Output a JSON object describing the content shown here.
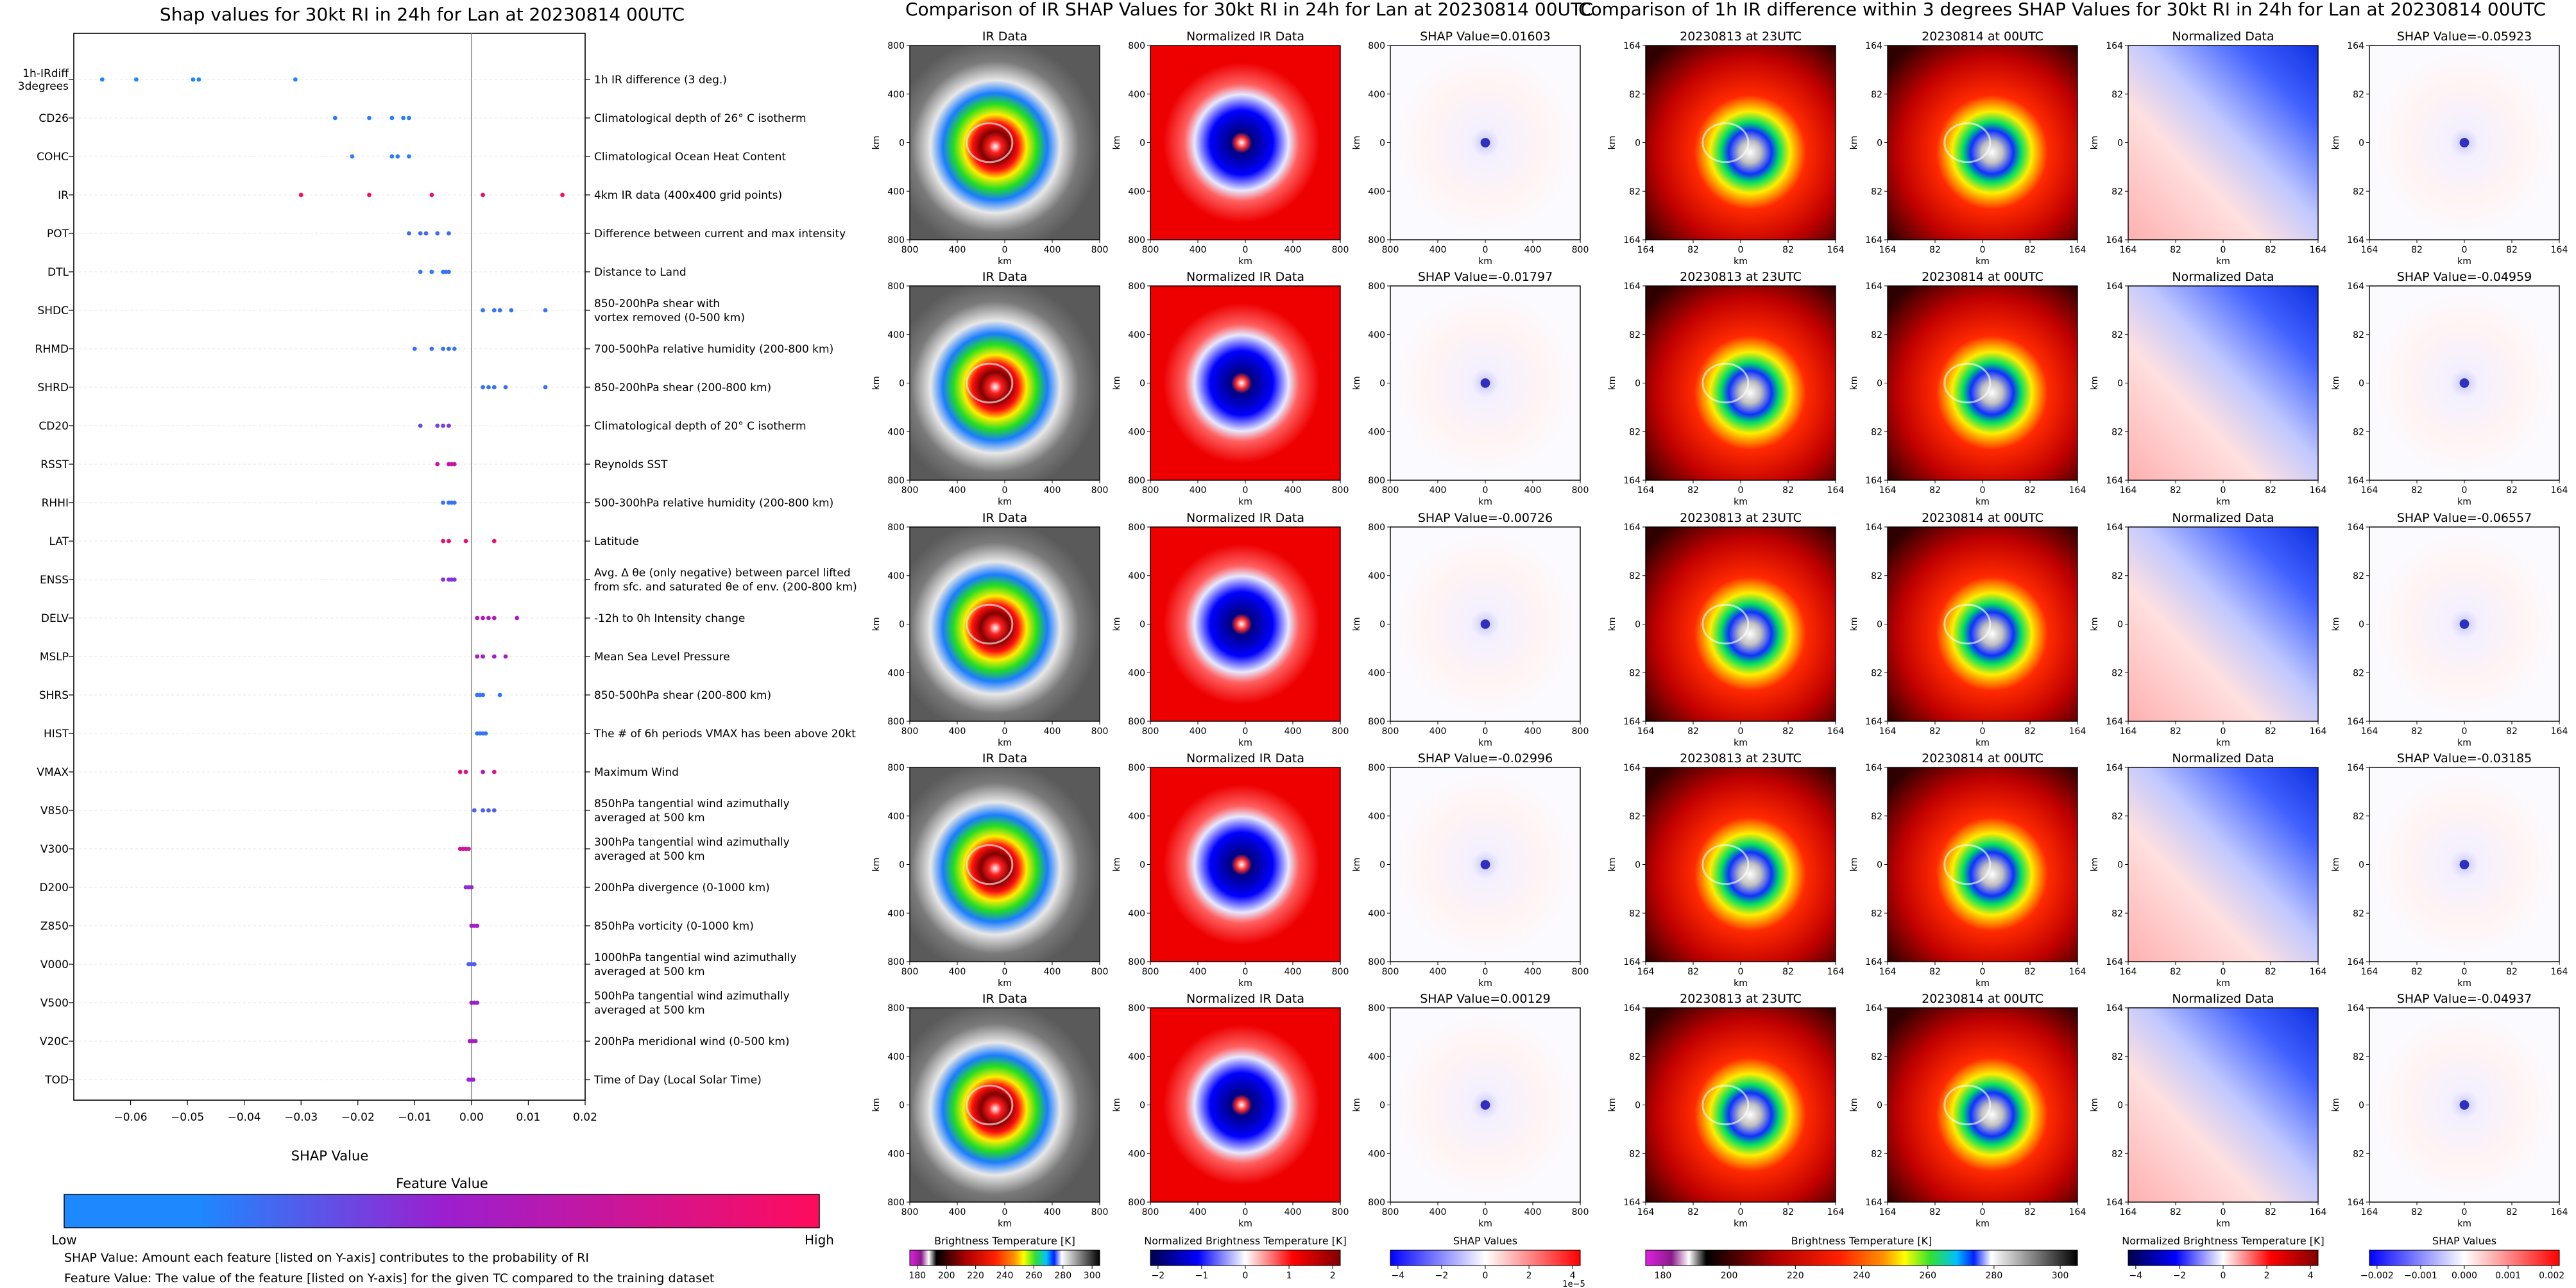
{
  "left_panel": {
    "title": "Shap values for 30kt RI in 24h for Lan at 20230814 00UTC",
    "xlabel": "SHAP Value",
    "colorbar_title": "Feature Value",
    "colorbar_low": "Low",
    "colorbar_high": "High",
    "footnote_1": "SHAP Value: Amount each feature [listed on Y-axis] contributes to the probability of RI",
    "footnote_2": "Feature Value: The value of the feature [listed on Y-axis] for the given TC compared to the training dataset"
  },
  "middle_panel": {
    "title": "Comparison of IR SHAP Values for 30kt RI in 24h for Lan at 20230814 00UTC",
    "column_titles": [
      "IR Data",
      "Normalized IR Data"
    ],
    "shap_titles": [
      "SHAP Value=0.01603",
      "SHAP Value=-0.01797",
      "SHAP Value=-0.00726",
      "SHAP Value=-0.02996",
      "SHAP Value=0.00129"
    ],
    "axis_label": "km",
    "ticks": [
      "800",
      "400",
      "0",
      "400",
      "800"
    ],
    "colorbars": [
      {
        "label": "Brightness Temperature [K]",
        "ticks": [
          "180",
          "200",
          "220",
          "240",
          "260",
          "280",
          "300"
        ],
        "offset": ""
      },
      {
        "label": "Normalized Brightness Temperature [K]",
        "ticks": [
          "−2",
          "−1",
          "0",
          "1",
          "2"
        ],
        "offset": ""
      },
      {
        "label": "SHAP Values",
        "ticks": [
          "−4",
          "−2",
          "0",
          "2",
          "4"
        ],
        "offset": "1e−5"
      }
    ]
  },
  "right_panel": {
    "title": "Comparison of 1h IR difference within 3 degrees SHAP Values for 30kt RI in 24h for Lan at 20230814 00UTC",
    "column_titles": [
      "20230813 at 23UTC",
      "20230814 at 00UTC",
      "Normalized Data"
    ],
    "shap_titles": [
      "SHAP Value=-0.05923",
      "SHAP Value=-0.04959",
      "SHAP Value=-0.06557",
      "SHAP Value=-0.03185",
      "SHAP Value=-0.04937"
    ],
    "axis_label": "km",
    "ticks": [
      "164",
      "82",
      "0",
      "82",
      "164"
    ],
    "colorbars": [
      {
        "label": "Brightness Temperature [K]",
        "ticks": [
          "180",
          "200",
          "220",
          "240",
          "260",
          "280",
          "300"
        ]
      },
      {
        "label": "Normalized Brightness Temperature [K]",
        "ticks": [
          "−4",
          "−2",
          "0",
          "2",
          "4"
        ]
      },
      {
        "label": "SHAP Values",
        "ticks": [
          "−0.002",
          "−0.001",
          "0.000",
          "0.001",
          "0.002"
        ]
      }
    ]
  },
  "colors": {
    "feature_low": "#1e88ff",
    "feature_mid": "#9b1fd0",
    "feature_high": "#ff0b5c",
    "shap_negative": "#0000cc",
    "shap_positive": "#cc0000"
  },
  "chart_data": [
    {
      "type": "scatter",
      "title": "Shap values for 30kt RI in 24h for Lan at 20230814 00UTC",
      "xlabel": "SHAP Value",
      "ylabel": "",
      "xlim": [
        -0.07,
        0.02
      ],
      "xticks": [
        -0.06,
        -0.05,
        -0.04,
        -0.03,
        -0.02,
        -0.01,
        0.0,
        0.01,
        0.02
      ],
      "xtick_labels": [
        "−0.06",
        "−0.05",
        "−0.04",
        "−0.03",
        "−0.02",
        "−0.01",
        "0.00",
        "0.01",
        "0.02"
      ],
      "color_scale": "feature value (Low to High)",
      "features": [
        {
          "name": "1h-IRdiff 3degrees",
          "description": "1h IR difference (3 deg.)",
          "points": [
            [
              -0.065,
              0.0
            ],
            [
              -0.059,
              0.0
            ],
            [
              -0.049,
              0.0
            ],
            [
              -0.048,
              0.0
            ],
            [
              -0.031,
              0.0
            ]
          ]
        },
        {
          "name": "CD26",
          "description": "Climatological depth of 26° C isotherm",
          "points": [
            [
              -0.024,
              0.05
            ],
            [
              -0.018,
              0.05
            ],
            [
              -0.014,
              0.05
            ],
            [
              -0.012,
              0.05
            ],
            [
              -0.011,
              0.05
            ]
          ]
        },
        {
          "name": "COHC",
          "description": "Climatological Ocean Heat Content",
          "points": [
            [
              -0.021,
              0.05
            ],
            [
              -0.014,
              0.05
            ],
            [
              -0.013,
              0.05
            ],
            [
              -0.011,
              0.05
            ]
          ]
        },
        {
          "name": "IR",
          "description": "4km IR data (400x400 grid points)",
          "points": [
            [
              -0.03,
              1.0
            ],
            [
              -0.018,
              0.95
            ],
            [
              -0.007,
              0.9
            ],
            [
              0.002,
              0.92
            ],
            [
              0.016,
              1.0
            ]
          ]
        },
        {
          "name": "POT",
          "description": "Difference between current and max intensity",
          "points": [
            [
              -0.011,
              0.15
            ],
            [
              -0.009,
              0.15
            ],
            [
              -0.008,
              0.15
            ],
            [
              -0.006,
              0.15
            ],
            [
              -0.004,
              0.15
            ]
          ]
        },
        {
          "name": "DTL",
          "description": "Distance to Land",
          "points": [
            [
              -0.009,
              0.1
            ],
            [
              -0.007,
              0.1
            ],
            [
              -0.005,
              0.1
            ],
            [
              -0.0045,
              0.1
            ],
            [
              -0.004,
              0.1
            ]
          ]
        },
        {
          "name": "SHDC",
          "description": "850-200hPa shear with\nvortex removed (0-500 km)",
          "points": [
            [
              0.002,
              0.1
            ],
            [
              0.004,
              0.1
            ],
            [
              0.005,
              0.1
            ],
            [
              0.007,
              0.1
            ],
            [
              0.013,
              0.1
            ]
          ]
        },
        {
          "name": "RHMD",
          "description": "700-500hPa relative humidity (200-800 km)",
          "points": [
            [
              -0.01,
              0.1
            ],
            [
              -0.007,
              0.1
            ],
            [
              -0.005,
              0.1
            ],
            [
              -0.004,
              0.1
            ],
            [
              -0.003,
              0.1
            ]
          ]
        },
        {
          "name": "SHRD",
          "description": "850-200hPa shear (200-800 km)",
          "points": [
            [
              0.002,
              0.1
            ],
            [
              0.003,
              0.1
            ],
            [
              0.004,
              0.1
            ],
            [
              0.006,
              0.1
            ],
            [
              0.013,
              0.1
            ]
          ]
        },
        {
          "name": "CD20",
          "description": "Climatological depth of 20° C isotherm",
          "points": [
            [
              -0.009,
              0.3
            ],
            [
              -0.006,
              0.35
            ],
            [
              -0.005,
              0.35
            ],
            [
              -0.004,
              0.4
            ]
          ]
        },
        {
          "name": "RSST",
          "description": "Reynolds SST",
          "points": [
            [
              -0.006,
              0.7
            ],
            [
              -0.004,
              0.7
            ],
            [
              -0.0035,
              0.7
            ],
            [
              -0.003,
              0.7
            ]
          ]
        },
        {
          "name": "RHHI",
          "description": "500-300hPa relative humidity (200-800 km)",
          "points": [
            [
              -0.005,
              0.1
            ],
            [
              -0.004,
              0.1
            ],
            [
              -0.0035,
              0.1
            ],
            [
              -0.003,
              0.1
            ]
          ]
        },
        {
          "name": "LAT",
          "description": "Latitude",
          "points": [
            [
              -0.005,
              0.9
            ],
            [
              -0.004,
              0.9
            ],
            [
              -0.001,
              0.9
            ],
            [
              0.004,
              0.9
            ]
          ]
        },
        {
          "name": "ENSS",
          "description": "Avg. Δ θe (only negative) between parcel lifted\nfrom sfc. and saturated θe of env. (200-800 km)",
          "points": [
            [
              -0.005,
              0.4
            ],
            [
              -0.004,
              0.4
            ],
            [
              -0.0035,
              0.4
            ],
            [
              -0.003,
              0.4
            ]
          ]
        },
        {
          "name": "DELV",
          "description": "-12h to 0h Intensity change",
          "points": [
            [
              0.001,
              0.6
            ],
            [
              0.002,
              0.6
            ],
            [
              0.003,
              0.6
            ],
            [
              0.004,
              0.6
            ],
            [
              0.008,
              0.6
            ]
          ]
        },
        {
          "name": "MSLP",
          "description": "Mean Sea Level Pressure",
          "points": [
            [
              0.001,
              0.55
            ],
            [
              0.002,
              0.55
            ],
            [
              0.004,
              0.55
            ],
            [
              0.006,
              0.55
            ]
          ]
        },
        {
          "name": "SHRS",
          "description": "850-500hPa shear (200-800 km)",
          "points": [
            [
              0.001,
              0.1
            ],
            [
              0.0015,
              0.1
            ],
            [
              0.002,
              0.1
            ],
            [
              0.005,
              0.1
            ]
          ]
        },
        {
          "name": "HIST",
          "description": "The # of 6h periods VMAX has been above 20kt",
          "points": [
            [
              0.001,
              0.1
            ],
            [
              0.0015,
              0.1
            ],
            [
              0.002,
              0.1
            ],
            [
              0.0025,
              0.1
            ]
          ]
        },
        {
          "name": "VMAX",
          "description": "Maximum Wind",
          "points": [
            [
              -0.002,
              0.85
            ],
            [
              -0.001,
              0.8
            ],
            [
              0.002,
              0.6
            ],
            [
              0.004,
              0.85
            ]
          ]
        },
        {
          "name": "V850",
          "description": "850hPa tangential wind azimuthally\naveraged at 500 km",
          "points": [
            [
              0.0005,
              0.2
            ],
            [
              0.002,
              0.2
            ],
            [
              0.003,
              0.2
            ],
            [
              0.004,
              0.2
            ]
          ]
        },
        {
          "name": "V300",
          "description": "300hPa tangential wind azimuthally\naveraged at 500 km",
          "points": [
            [
              -0.002,
              0.8
            ],
            [
              -0.0015,
              0.75
            ],
            [
              -0.001,
              0.7
            ],
            [
              -0.0005,
              0.7
            ]
          ]
        },
        {
          "name": "D200",
          "description": "200hPa divergence (0-1000 km)",
          "points": [
            [
              -0.001,
              0.45
            ],
            [
              -0.0005,
              0.45
            ],
            [
              0.0,
              0.45
            ]
          ]
        },
        {
          "name": "Z850",
          "description": "850hPa vorticity (0-1000 km)",
          "points": [
            [
              0.0,
              0.55
            ],
            [
              0.0005,
              0.55
            ],
            [
              0.001,
              0.55
            ]
          ]
        },
        {
          "name": "V000",
          "description": "1000hPa tangential wind azimuthally\naveraged at 500 km",
          "points": [
            [
              -0.0005,
              0.2
            ],
            [
              0.0,
              0.2
            ],
            [
              0.0005,
              0.2
            ]
          ]
        },
        {
          "name": "V500",
          "description": "500hPa tangential wind azimuthally\naveraged at 500 km",
          "points": [
            [
              0.0,
              0.5
            ],
            [
              0.0005,
              0.5
            ],
            [
              0.001,
              0.5
            ]
          ]
        },
        {
          "name": "V20C",
          "description": "200hPa meridional wind (0-500 km)",
          "points": [
            [
              -0.0003,
              0.55
            ],
            [
              0.0002,
              0.55
            ],
            [
              0.0007,
              0.55
            ]
          ]
        },
        {
          "name": "TOD",
          "description": "Time of Day (Local Solar Time)",
          "points": [
            [
              -0.0005,
              0.5
            ],
            [
              0.0,
              0.5
            ],
            [
              0.0003,
              0.5
            ]
          ]
        }
      ]
    },
    {
      "type": "heatmap",
      "title": "Comparison of IR SHAP Values for 30kt RI in 24h for Lan at 20230814 00UTC",
      "rows": 5,
      "columns": [
        "IR Data",
        "Normalized IR Data",
        "SHAP"
      ],
      "shap_values": [
        0.01603,
        -0.01797,
        -0.00726,
        -0.02996,
        0.00129
      ],
      "xlabel": "km",
      "ylabel": "km"
    },
    {
      "type": "heatmap",
      "title": "Comparison of 1h IR difference within 3 degrees SHAP Values for 30kt RI in 24h for Lan at 20230814 00UTC",
      "rows": 5,
      "columns": [
        "20230813 at 23UTC",
        "20230814 at 00UTC",
        "Normalized Data",
        "SHAP"
      ],
      "shap_values": [
        -0.05923,
        -0.04959,
        -0.06557,
        -0.03185,
        -0.04937
      ],
      "xlabel": "km",
      "ylabel": "km"
    }
  ]
}
